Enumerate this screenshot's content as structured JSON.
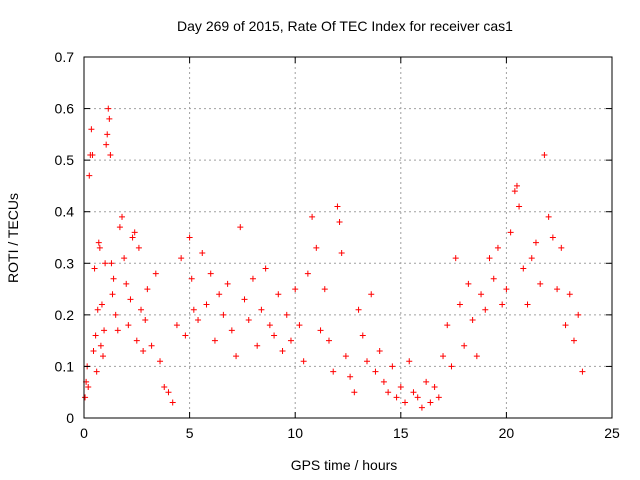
{
  "chart_data": {
    "type": "scatter",
    "title": "Day 269 of 2015, Rate Of TEC Index for receiver cas1",
    "xlabel": "GPS time / hours",
    "ylabel": "ROTI / TECUs",
    "xlim": [
      0,
      25
    ],
    "ylim": [
      0,
      0.7
    ],
    "x_ticks": [
      0,
      5,
      10,
      15,
      20,
      25
    ],
    "y_ticks": [
      0,
      0.1,
      0.2,
      0.3,
      0.4,
      0.5,
      0.6,
      0.7
    ],
    "x_tick_labels": [
      "0",
      "5",
      "10",
      "15",
      "20",
      "25"
    ],
    "y_tick_labels": [
      "0",
      "0.1",
      "0.2",
      "0.3",
      "0.4",
      "0.5",
      "0.6",
      "0.7"
    ],
    "grid": true,
    "marker": "+",
    "color": "#ff0000",
    "series": [
      {
        "name": "ROTI",
        "points": [
          [
            0.05,
            0.04
          ],
          [
            0.1,
            0.07
          ],
          [
            0.15,
            0.1
          ],
          [
            0.2,
            0.06
          ],
          [
            0.25,
            0.47
          ],
          [
            0.3,
            0.51
          ],
          [
            0.35,
            0.56
          ],
          [
            0.4,
            0.51
          ],
          [
            0.45,
            0.13
          ],
          [
            0.5,
            0.29
          ],
          [
            0.55,
            0.16
          ],
          [
            0.6,
            0.09
          ],
          [
            0.65,
            0.21
          ],
          [
            0.7,
            0.34
          ],
          [
            0.75,
            0.33
          ],
          [
            0.8,
            0.14
          ],
          [
            0.85,
            0.22
          ],
          [
            0.9,
            0.12
          ],
          [
            0.95,
            0.17
          ],
          [
            1.0,
            0.3
          ],
          [
            1.05,
            0.53
          ],
          [
            1.1,
            0.55
          ],
          [
            1.15,
            0.6
          ],
          [
            1.2,
            0.58
          ],
          [
            1.25,
            0.51
          ],
          [
            1.3,
            0.3
          ],
          [
            1.35,
            0.24
          ],
          [
            1.4,
            0.27
          ],
          [
            1.5,
            0.2
          ],
          [
            1.6,
            0.17
          ],
          [
            1.7,
            0.37
          ],
          [
            1.8,
            0.39
          ],
          [
            1.9,
            0.31
          ],
          [
            2.0,
            0.26
          ],
          [
            2.1,
            0.18
          ],
          [
            2.2,
            0.23
          ],
          [
            2.3,
            0.35
          ],
          [
            2.4,
            0.36
          ],
          [
            2.5,
            0.15
          ],
          [
            2.6,
            0.33
          ],
          [
            2.7,
            0.21
          ],
          [
            2.8,
            0.13
          ],
          [
            2.9,
            0.19
          ],
          [
            3.0,
            0.25
          ],
          [
            3.2,
            0.14
          ],
          [
            3.4,
            0.28
          ],
          [
            3.6,
            0.11
          ],
          [
            3.8,
            0.06
          ],
          [
            4.0,
            0.05
          ],
          [
            4.2,
            0.03
          ],
          [
            4.4,
            0.18
          ],
          [
            4.6,
            0.31
          ],
          [
            4.8,
            0.16
          ],
          [
            5.0,
            0.35
          ],
          [
            5.1,
            0.27
          ],
          [
            5.2,
            0.21
          ],
          [
            5.4,
            0.19
          ],
          [
            5.6,
            0.32
          ],
          [
            5.8,
            0.22
          ],
          [
            6.0,
            0.28
          ],
          [
            6.2,
            0.15
          ],
          [
            6.4,
            0.24
          ],
          [
            6.6,
            0.2
          ],
          [
            6.8,
            0.26
          ],
          [
            7.0,
            0.17
          ],
          [
            7.2,
            0.12
          ],
          [
            7.4,
            0.37
          ],
          [
            7.6,
            0.23
          ],
          [
            7.8,
            0.19
          ],
          [
            8.0,
            0.27
          ],
          [
            8.2,
            0.14
          ],
          [
            8.4,
            0.21
          ],
          [
            8.6,
            0.29
          ],
          [
            8.8,
            0.18
          ],
          [
            9.0,
            0.16
          ],
          [
            9.2,
            0.24
          ],
          [
            9.4,
            0.13
          ],
          [
            9.6,
            0.2
          ],
          [
            9.8,
            0.15
          ],
          [
            10.0,
            0.25
          ],
          [
            10.2,
            0.18
          ],
          [
            10.4,
            0.11
          ],
          [
            10.6,
            0.28
          ],
          [
            10.8,
            0.39
          ],
          [
            11.0,
            0.33
          ],
          [
            11.2,
            0.17
          ],
          [
            11.4,
            0.25
          ],
          [
            11.6,
            0.15
          ],
          [
            11.8,
            0.09
          ],
          [
            12.0,
            0.41
          ],
          [
            12.1,
            0.38
          ],
          [
            12.2,
            0.32
          ],
          [
            12.4,
            0.12
          ],
          [
            12.6,
            0.08
          ],
          [
            12.8,
            0.05
          ],
          [
            13.0,
            0.21
          ],
          [
            13.2,
            0.16
          ],
          [
            13.4,
            0.11
          ],
          [
            13.6,
            0.24
          ],
          [
            13.8,
            0.09
          ],
          [
            14.0,
            0.13
          ],
          [
            14.2,
            0.07
          ],
          [
            14.4,
            0.05
          ],
          [
            14.6,
            0.1
          ],
          [
            14.8,
            0.04
          ],
          [
            15.0,
            0.06
          ],
          [
            15.2,
            0.03
          ],
          [
            15.4,
            0.11
          ],
          [
            15.6,
            0.05
          ],
          [
            15.8,
            0.04
          ],
          [
            16.0,
            0.02
          ],
          [
            16.2,
            0.07
          ],
          [
            16.4,
            0.03
          ],
          [
            16.6,
            0.06
          ],
          [
            16.8,
            0.04
          ],
          [
            17.0,
            0.12
          ],
          [
            17.2,
            0.18
          ],
          [
            17.4,
            0.1
          ],
          [
            17.6,
            0.31
          ],
          [
            17.8,
            0.22
          ],
          [
            18.0,
            0.14
          ],
          [
            18.2,
            0.26
          ],
          [
            18.4,
            0.19
          ],
          [
            18.6,
            0.12
          ],
          [
            18.8,
            0.24
          ],
          [
            19.0,
            0.21
          ],
          [
            19.2,
            0.31
          ],
          [
            19.4,
            0.27
          ],
          [
            19.6,
            0.33
          ],
          [
            19.8,
            0.22
          ],
          [
            20.0,
            0.25
          ],
          [
            20.2,
            0.36
          ],
          [
            20.4,
            0.44
          ],
          [
            20.5,
            0.45
          ],
          [
            20.6,
            0.41
          ],
          [
            20.8,
            0.29
          ],
          [
            21.0,
            0.22
          ],
          [
            21.2,
            0.31
          ],
          [
            21.4,
            0.34
          ],
          [
            21.6,
            0.26
          ],
          [
            21.8,
            0.51
          ],
          [
            22.0,
            0.39
          ],
          [
            22.2,
            0.35
          ],
          [
            22.4,
            0.25
          ],
          [
            22.6,
            0.33
          ],
          [
            22.8,
            0.18
          ],
          [
            23.0,
            0.24
          ],
          [
            23.2,
            0.15
          ],
          [
            23.4,
            0.2
          ],
          [
            23.6,
            0.09
          ]
        ]
      }
    ]
  }
}
